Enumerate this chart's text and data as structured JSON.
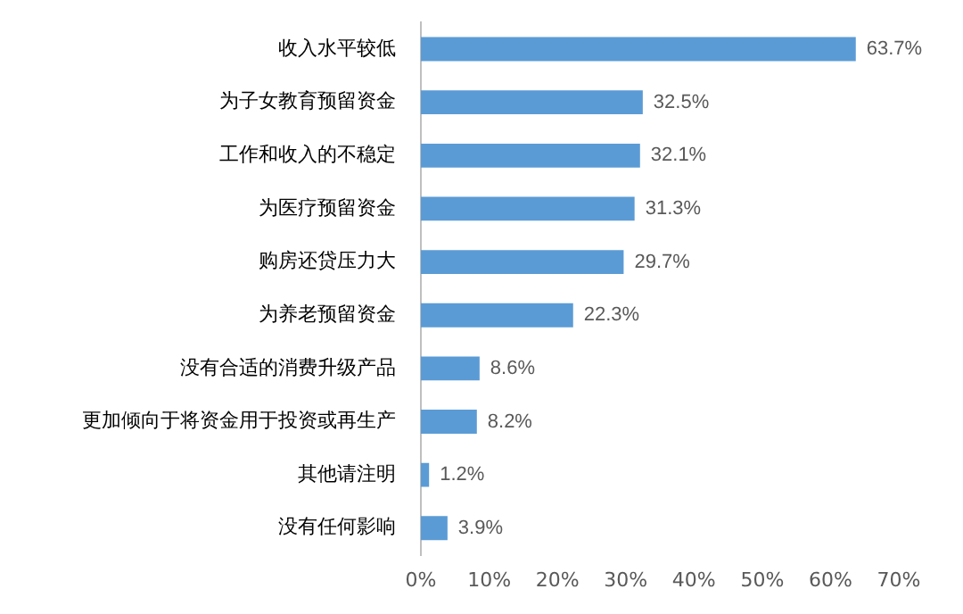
{
  "chart_data": {
    "type": "bar",
    "orientation": "horizontal",
    "categories": [
      "收入水平较低",
      "为子女教育预留资金",
      "工作和收入的不稳定",
      "为医疗预留资金",
      "购房还贷压力大",
      "为养老预留资金",
      "没有合适的消费升级产品",
      "更加倾向于将资金用于投资或再生产",
      "其他请注明",
      "没有任何影响"
    ],
    "values": [
      63.7,
      32.5,
      32.1,
      31.3,
      29.7,
      22.3,
      8.6,
      8.2,
      1.2,
      3.9
    ],
    "value_labels": [
      "63.7%",
      "32.5%",
      "32.1%",
      "31.3%",
      "29.7%",
      "22.3%",
      "8.6%",
      "8.2%",
      "1.2%",
      "3.9%"
    ],
    "color": "#5b9bd5",
    "xlim": [
      0,
      70
    ],
    "xticks": [
      {
        "value": 0,
        "label": "0%"
      },
      {
        "value": 10,
        "label": "10%"
      },
      {
        "value": 20,
        "label": "20%"
      },
      {
        "value": 30,
        "label": "30%"
      },
      {
        "value": 40,
        "label": "40%"
      },
      {
        "value": 50,
        "label": "50%"
      },
      {
        "value": 60,
        "label": "60%"
      },
      {
        "value": 70,
        "label": "70%"
      }
    ]
  }
}
